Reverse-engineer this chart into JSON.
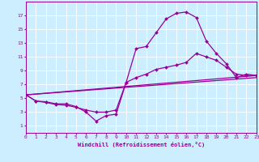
{
  "xlabel": "Windchill (Refroidissement éolien,°C)",
  "background_color": "#cceeff",
  "grid_color": "#aaddcc",
  "line_color": "#990099",
  "line1_x": [
    0,
    1,
    2,
    3,
    4,
    5,
    6,
    7,
    8,
    9,
    10,
    11,
    12,
    13,
    14,
    15,
    16,
    17,
    18,
    19,
    20,
    21,
    22,
    23
  ],
  "line1_y": [
    5.5,
    4.6,
    4.5,
    4.2,
    4.2,
    3.8,
    3.0,
    1.7,
    2.5,
    2.7,
    7.3,
    12.2,
    12.5,
    14.5,
    16.5,
    17.3,
    17.5,
    16.7,
    13.3,
    11.5,
    10.0,
    8.0,
    8.5,
    8.3
  ],
  "line2_x": [
    0,
    1,
    2,
    3,
    4,
    5,
    6,
    7,
    8,
    9,
    10,
    11,
    12,
    13,
    14,
    15,
    16,
    17,
    18,
    19,
    20,
    21,
    22,
    23
  ],
  "line2_y": [
    5.5,
    4.6,
    4.4,
    4.1,
    4.0,
    3.7,
    3.3,
    3.0,
    3.0,
    3.3,
    7.3,
    8.0,
    8.5,
    9.2,
    9.5,
    9.8,
    10.2,
    11.5,
    11.0,
    10.5,
    9.5,
    8.5,
    8.3,
    8.3
  ],
  "line3_x": [
    0,
    23
  ],
  "line3_y": [
    5.5,
    8.3
  ],
  "line4_x": [
    0,
    23
  ],
  "line4_y": [
    5.5,
    8.0
  ],
  "ylim": [
    0,
    19
  ],
  "xlim": [
    0,
    23
  ],
  "yticks": [
    1,
    3,
    5,
    7,
    9,
    11,
    13,
    15,
    17
  ],
  "xticks": [
    0,
    1,
    2,
    3,
    4,
    5,
    6,
    7,
    8,
    9,
    10,
    11,
    12,
    13,
    14,
    15,
    16,
    17,
    18,
    19,
    20,
    21,
    22,
    23
  ]
}
